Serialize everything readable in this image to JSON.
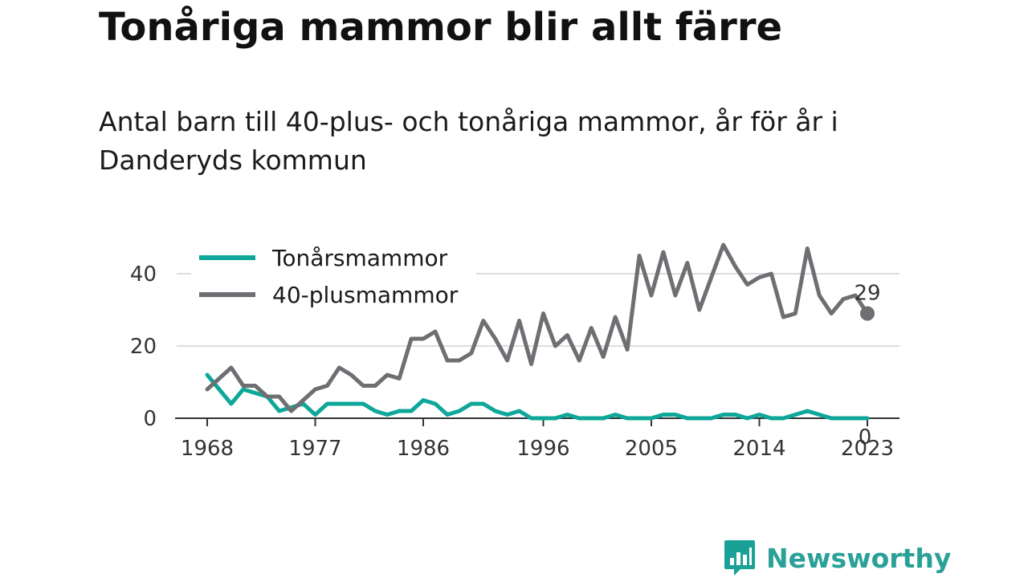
{
  "title": "Tonåriga mammor blir allt färre",
  "subtitle": "Antal barn till 40-plus- och tonåriga mammor, år för år i Danderyds kommun",
  "brand": {
    "name": "Newsworthy",
    "color": "#1aa197"
  },
  "colors": {
    "teen": "#0ea79a",
    "plus40": "#6e6e73",
    "grid": "#dddddd",
    "axis": "#333333"
  },
  "chart_data": {
    "type": "line",
    "legend": "top-left",
    "grid": true,
    "xlim": [
      1968,
      2023
    ],
    "ylim": [
      0,
      48
    ],
    "xticks": [
      "1968",
      "1977",
      "1986",
      "1996",
      "2005",
      "2014",
      "2023"
    ],
    "yticks": [
      "0",
      "20",
      "40"
    ],
    "x": [
      1968,
      1969,
      1970,
      1971,
      1972,
      1973,
      1974,
      1975,
      1976,
      1977,
      1978,
      1979,
      1980,
      1981,
      1982,
      1983,
      1984,
      1985,
      1986,
      1987,
      1988,
      1989,
      1990,
      1991,
      1992,
      1993,
      1994,
      1995,
      1996,
      1997,
      1998,
      1999,
      2000,
      2001,
      2002,
      2003,
      2004,
      2005,
      2006,
      2007,
      2008,
      2009,
      2010,
      2011,
      2012,
      2013,
      2014,
      2015,
      2016,
      2017,
      2018,
      2019,
      2020,
      2021,
      2022,
      2023
    ],
    "series": [
      {
        "name": "Tonårsmammor",
        "values": [
          12,
          8,
          4,
          8,
          7,
          6,
          2,
          3,
          4,
          1,
          4,
          4,
          4,
          4,
          2,
          1,
          2,
          2,
          5,
          4,
          1,
          2,
          4,
          4,
          2,
          1,
          2,
          0,
          0,
          0,
          1,
          0,
          0,
          0,
          1,
          0,
          0,
          0,
          1,
          1,
          0,
          0,
          0,
          1,
          1,
          0,
          1,
          0,
          0,
          1,
          2,
          1,
          0,
          0,
          0,
          0
        ],
        "end_label": "0"
      },
      {
        "name": "40-plusmammor",
        "values": [
          8,
          11,
          14,
          9,
          9,
          6,
          6,
          2,
          5,
          8,
          9,
          14,
          12,
          9,
          9,
          12,
          11,
          22,
          22,
          24,
          16,
          16,
          18,
          27,
          22,
          16,
          27,
          15,
          29,
          20,
          23,
          16,
          25,
          17,
          28,
          19,
          45,
          34,
          46,
          34,
          43,
          30,
          39,
          48,
          42,
          37,
          39,
          40,
          28,
          29,
          47,
          34,
          29,
          33,
          34,
          29
        ],
        "end_label": "29"
      }
    ]
  }
}
